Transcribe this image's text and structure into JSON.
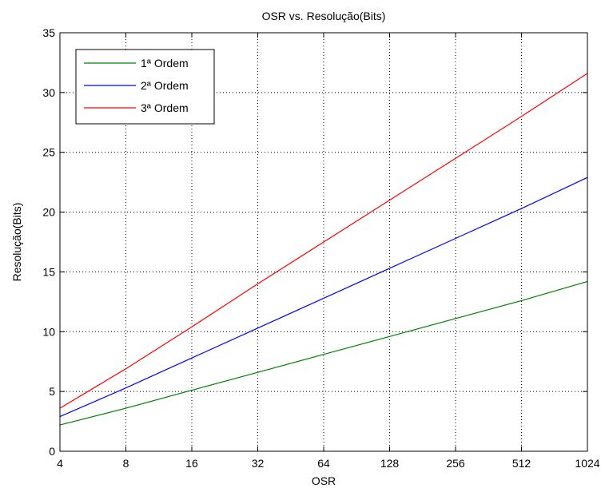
{
  "chart_data": {
    "type": "line",
    "title": "OSR vs. Resolução(Bits)",
    "xlabel": "OSR",
    "ylabel": "Resolução(Bits)",
    "x_scale": "log2",
    "x_ticks": [
      4,
      8,
      16,
      32,
      64,
      128,
      256,
      512,
      1024
    ],
    "x_tick_labels": [
      "4",
      "8",
      "16",
      "32",
      "64",
      "128",
      "256",
      "512",
      "1024"
    ],
    "y_ticks": [
      0,
      5,
      10,
      15,
      20,
      25,
      30,
      35
    ],
    "y_tick_labels": [
      "0",
      "5",
      "10",
      "15",
      "20",
      "25",
      "30",
      "35"
    ],
    "xlim": [
      4,
      1024
    ],
    "ylim": [
      0,
      35
    ],
    "grid": true,
    "legend_position": "top-left",
    "series": [
      {
        "name": "1ª Ordem",
        "color": "#008000",
        "x": [
          4,
          8,
          16,
          32,
          64,
          128,
          256,
          512,
          1024
        ],
        "y": [
          2.2,
          3.6,
          5.1,
          6.6,
          8.1,
          9.6,
          11.1,
          12.6,
          14.2
        ]
      },
      {
        "name": "2ª Ordem",
        "color": "#0000ff",
        "x": [
          4,
          8,
          16,
          32,
          64,
          128,
          256,
          512,
          1024
        ],
        "y": [
          2.9,
          5.3,
          7.8,
          10.3,
          12.8,
          15.3,
          17.8,
          20.3,
          22.9
        ]
      },
      {
        "name": "3ª Ordem",
        "color": "#ff0000",
        "x": [
          4,
          8,
          16,
          32,
          64,
          128,
          256,
          512,
          1024
        ],
        "y": [
          3.6,
          6.9,
          10.4,
          14.0,
          17.5,
          21.0,
          24.5,
          28.0,
          31.6
        ]
      }
    ]
  }
}
